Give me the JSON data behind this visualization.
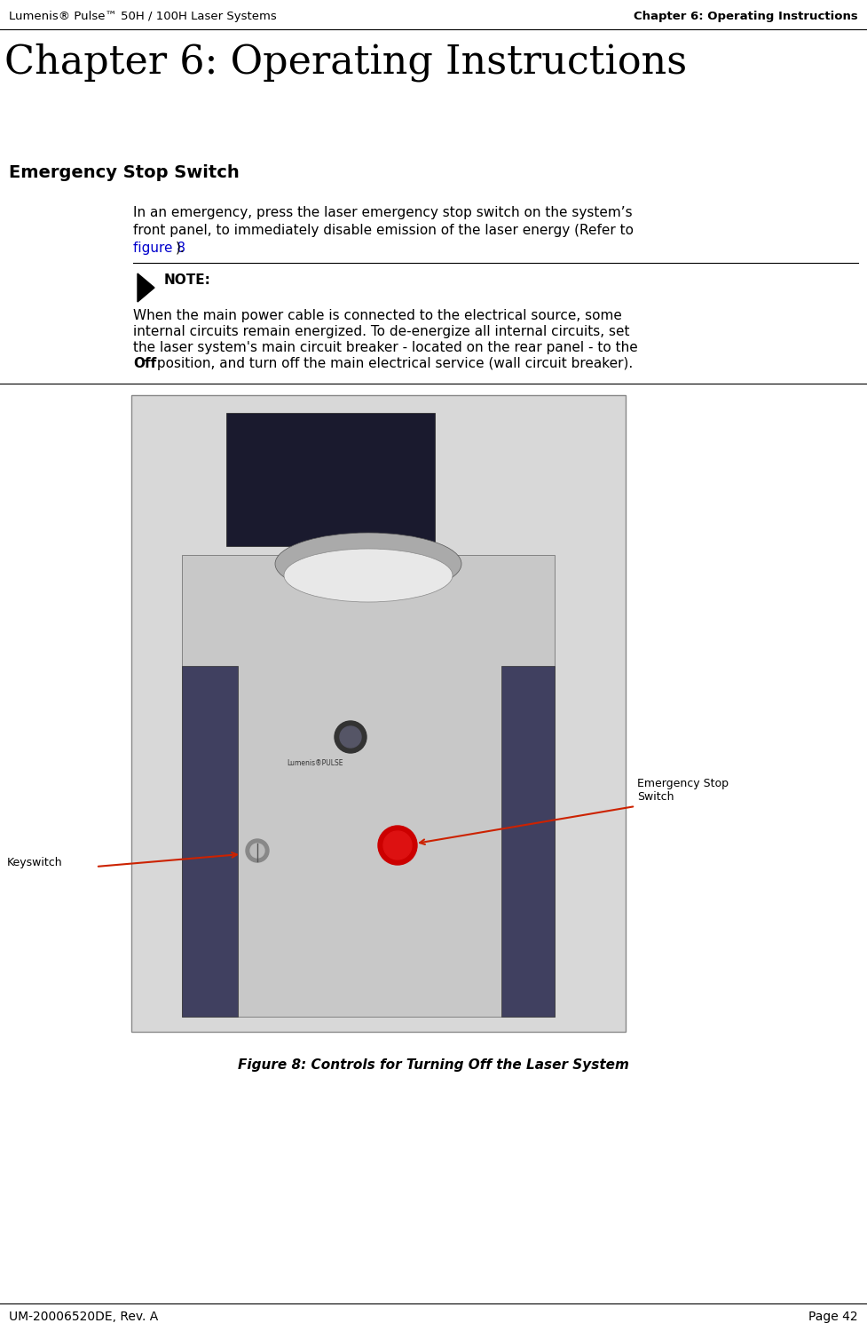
{
  "page_width": 9.77,
  "page_height": 15.08,
  "bg_color": "#ffffff",
  "header_left": "Lumenis® Pulse™ 50H / 100H Laser Systems",
  "header_right": "Chapter 6: Operating Instructions",
  "chapter_title": "Chapter 6: Operating Instructions",
  "section_title": "Emergency Stop Switch",
  "body_line1": "In an emergency, press the laser emergency stop switch on the system’s",
  "body_line2": "front panel, to immediately disable emission of the laser energy (Refer to",
  "body_link": "figure 8",
  "body_post_link": ").",
  "note_label": "NOTE:",
  "note_line1": "When the main power cable is connected to the electrical source, some",
  "note_line2": "internal circuits remain energized. To de-energize all internal circuits, set",
  "note_line3": "the laser system's main circuit breaker - located on the rear panel - to the",
  "note_line4_bold": "Off",
  "note_line4_rest": " position, and turn off the main electrical service (wall circuit breaker).",
  "figure_caption": "Figure 8: Controls for Turning Off the Laser System",
  "label_emergency": "Emergency Stop\nSwitch",
  "label_keyswitch": "Keyswitch",
  "footer_left": "UM-20006520DE, Rev. A",
  "footer_right": "Page 42",
  "text_color": "#000000",
  "link_color": "#0000cc",
  "header_font_size": 9.5,
  "chapter_title_font_size": 32,
  "section_title_font_size": 14,
  "body_font_size": 11,
  "note_label_font_size": 11,
  "caption_font_size": 11,
  "footer_font_size": 10,
  "img_bg": "#d8d8d8",
  "machine_body_color": "#c8c8c8",
  "machine_top_color": "#1a1a2e",
  "machine_disc_color": "#aaaaaa",
  "machine_side_color": "#404060",
  "emergency_btn_color": "#cc0000",
  "arrow_color": "#cc2200"
}
